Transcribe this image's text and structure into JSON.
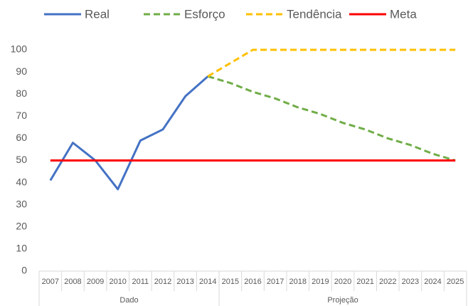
{
  "chart_data": {
    "type": "line",
    "categories": [
      "2007",
      "2008",
      "2009",
      "2010",
      "2011",
      "2012",
      "2013",
      "2014",
      "2015",
      "2016",
      "2017",
      "2018",
      "2019",
      "2020",
      "2021",
      "2022",
      "2023",
      "2024",
      "2025"
    ],
    "groups": [
      {
        "label": "Dado",
        "span": 8
      },
      {
        "label": "Projeção",
        "span": 11
      }
    ],
    "series": [
      {
        "name": "Real",
        "color": "#4472c4",
        "dashed": false,
        "values": [
          41,
          58,
          50,
          37,
          59,
          64,
          79,
          88,
          null,
          null,
          null,
          null,
          null,
          null,
          null,
          null,
          null,
          null,
          null
        ]
      },
      {
        "name": "Esforço",
        "color": "#70ad47",
        "dashed": true,
        "values": [
          null,
          null,
          null,
          null,
          null,
          null,
          null,
          88,
          85,
          81,
          78,
          74,
          71,
          67,
          64,
          60,
          57,
          53,
          50
        ]
      },
      {
        "name": "Tendência",
        "color": "#ffc000",
        "dashed": true,
        "values": [
          null,
          null,
          null,
          null,
          null,
          null,
          null,
          88,
          94,
          100,
          100,
          100,
          100,
          100,
          100,
          100,
          100,
          100,
          100
        ]
      },
      {
        "name": "Meta",
        "color": "#ff0000",
        "dashed": false,
        "values": [
          50,
          50,
          50,
          50,
          50,
          50,
          50,
          50,
          50,
          50,
          50,
          50,
          50,
          50,
          50,
          50,
          50,
          50,
          50
        ]
      }
    ],
    "ylim": [
      0,
      100
    ],
    "yticks": [
      0,
      10,
      20,
      30,
      40,
      50,
      60,
      70,
      80,
      90,
      100
    ],
    "grid": false,
    "legend": "top"
  }
}
